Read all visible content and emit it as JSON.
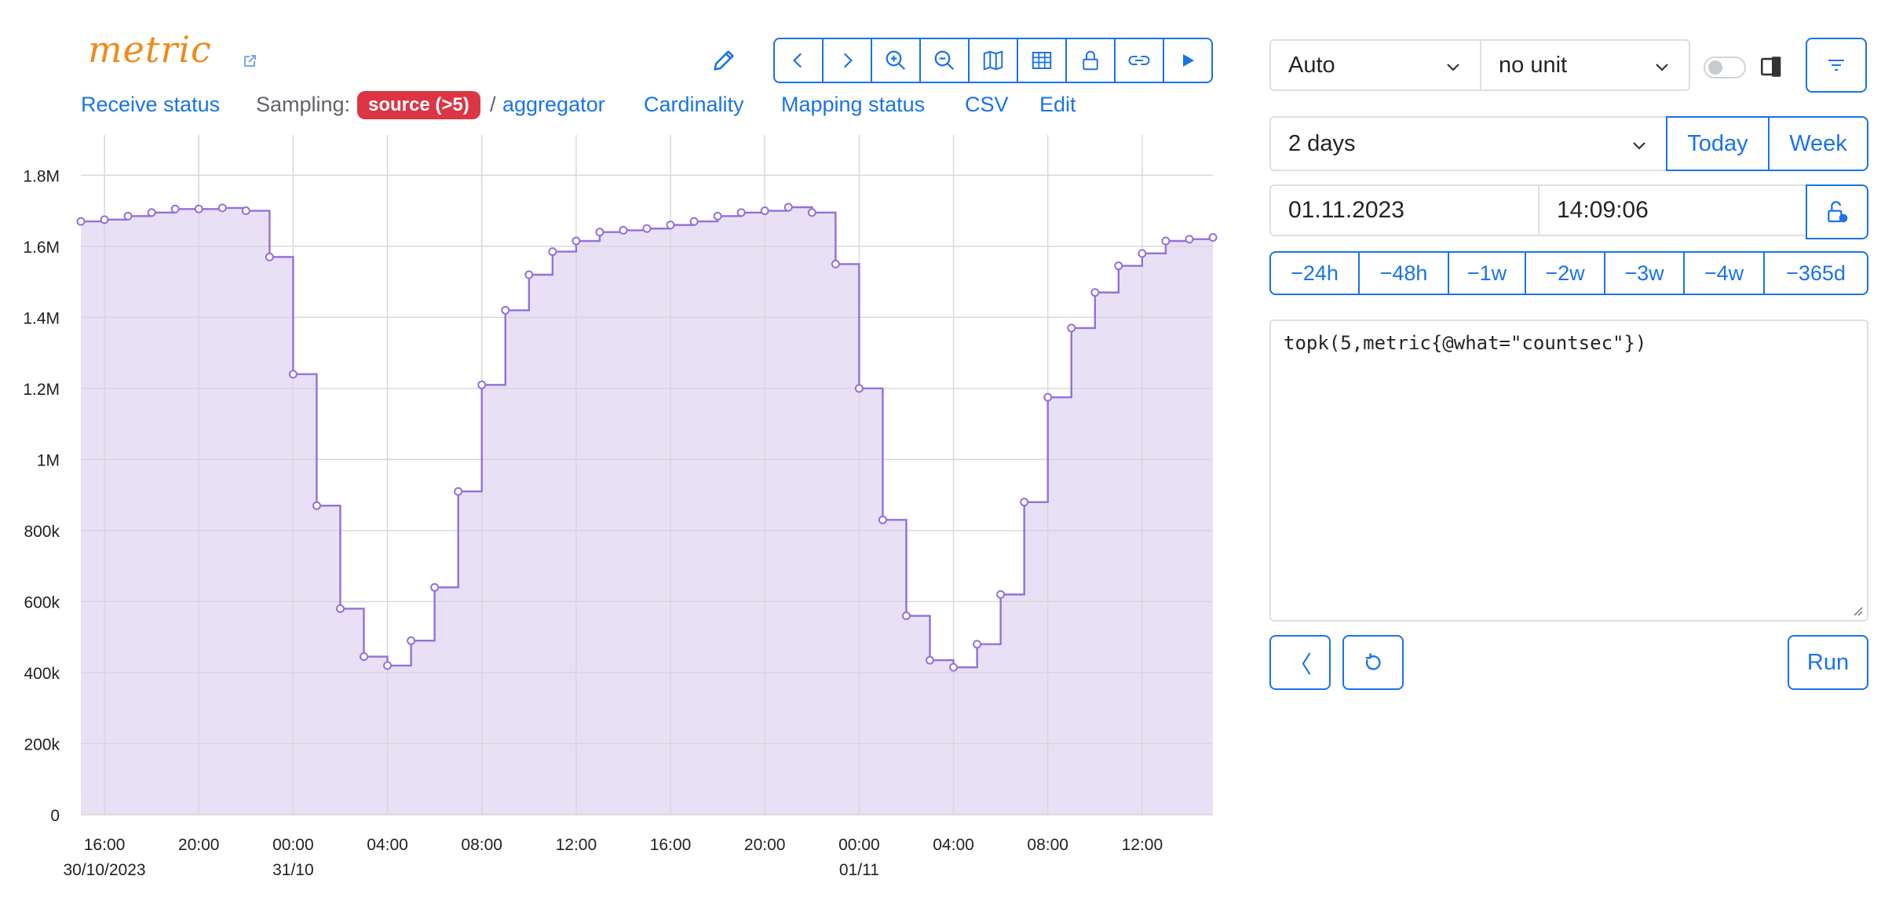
{
  "header": {
    "title": "metric",
    "nav": {
      "receive_status": "Receive status",
      "sampling_label": "Sampling:",
      "sampling_badge": "source (>5)",
      "sampling_sep": "/",
      "aggregator": "aggregator",
      "cardinality": "Cardinality",
      "mapping_status": "Mapping status",
      "csv": "CSV",
      "edit": "Edit"
    },
    "toolbar_icons": [
      "chevron-left-icon",
      "chevron-right-icon",
      "zoom-in-icon",
      "zoom-out-icon",
      "map-icon",
      "table-icon",
      "lock-icon",
      "link-icon",
      "play-icon"
    ]
  },
  "controls": {
    "aggregation": "Auto",
    "unit": "no unit",
    "range": "2 days",
    "today": "Today",
    "week": "Week",
    "date": "01.11.2023",
    "time": "14:09:06",
    "shifts": [
      "−24h",
      "−48h",
      "−1w",
      "−2w",
      "−3w",
      "−4w",
      "−365d"
    ],
    "query": "topk(5,metric{@what=\"countsec\"})",
    "collapse_label": "〈",
    "run": "Run"
  },
  "colors": {
    "accent": "#1a73e8",
    "line": "#9370db",
    "fill": "#e8e0f5",
    "badge": "#dc3545",
    "logo": "#f08a1a"
  },
  "chart_data": {
    "type": "line",
    "step": true,
    "ylim": [
      0,
      1900000
    ],
    "y_ticks": [
      {
        "v": 0,
        "label": "0"
      },
      {
        "v": 200000,
        "label": "200k"
      },
      {
        "v": 400000,
        "label": "400k"
      },
      {
        "v": 600000,
        "label": "600k"
      },
      {
        "v": 800000,
        "label": "800k"
      },
      {
        "v": 1000000,
        "label": "1M"
      },
      {
        "v": 1200000,
        "label": "1.2M"
      },
      {
        "v": 1400000,
        "label": "1.4M"
      },
      {
        "v": 1600000,
        "label": "1.6M"
      },
      {
        "v": 1800000,
        "label": "1.8M"
      }
    ],
    "xlim": [
      "30/10/2023 15:00",
      "01/11/2023 15:00"
    ],
    "x_ticks": [
      {
        "h": 1,
        "label": "16:00",
        "sub": "30/10/2023"
      },
      {
        "h": 5,
        "label": "20:00",
        "sub": ""
      },
      {
        "h": 9,
        "label": "00:00",
        "sub": "31/10"
      },
      {
        "h": 13,
        "label": "04:00",
        "sub": ""
      },
      {
        "h": 17,
        "label": "08:00",
        "sub": ""
      },
      {
        "h": 21,
        "label": "12:00",
        "sub": ""
      },
      {
        "h": 25,
        "label": "16:00",
        "sub": ""
      },
      {
        "h": 29,
        "label": "20:00",
        "sub": ""
      },
      {
        "h": 33,
        "label": "00:00",
        "sub": "01/11"
      },
      {
        "h": 37,
        "label": "04:00",
        "sub": ""
      },
      {
        "h": 41,
        "label": "08:00",
        "sub": ""
      },
      {
        "h": 45,
        "label": "12:00",
        "sub": ""
      }
    ],
    "x_hours": [
      0,
      1,
      2,
      3,
      4,
      5,
      6,
      7,
      8,
      9,
      10,
      11,
      12,
      13,
      14,
      15,
      16,
      17,
      18,
      19,
      20,
      21,
      22,
      23,
      24,
      25,
      26,
      27,
      28,
      29,
      30,
      31,
      32,
      33,
      34,
      35,
      36,
      37,
      38,
      39,
      40,
      41,
      42,
      43,
      44,
      45,
      46,
      47,
      48
    ],
    "values": [
      1670000,
      1675000,
      1685000,
      1695000,
      1705000,
      1705000,
      1708000,
      1700000,
      1570000,
      1240000,
      870000,
      580000,
      445000,
      420000,
      490000,
      640000,
      910000,
      1210000,
      1420000,
      1520000,
      1585000,
      1615000,
      1640000,
      1645000,
      1650000,
      1660000,
      1670000,
      1685000,
      1695000,
      1700000,
      1710000,
      1695000,
      1550000,
      1200000,
      830000,
      560000,
      435000,
      415000,
      480000,
      620000,
      880000,
      1175000,
      1370000,
      1470000,
      1545000,
      1580000,
      1615000,
      1620000,
      1625000
    ]
  }
}
